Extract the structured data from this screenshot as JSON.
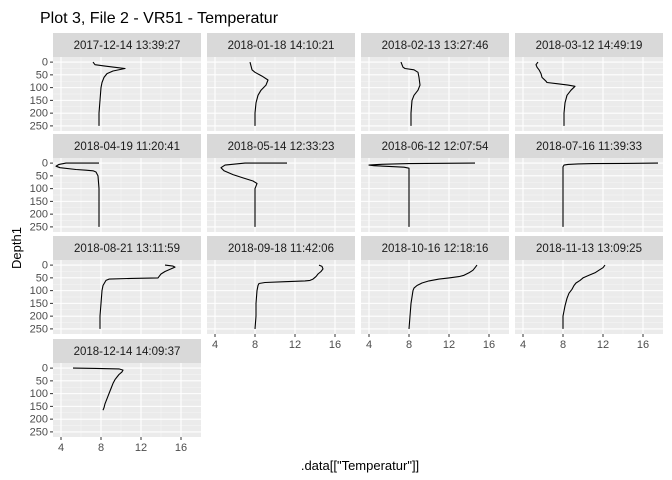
{
  "chart_data": {
    "type": "line",
    "title": "Plot 3, File 2 - VR51  -  Temperatur",
    "xlabel": ".data[[\"Temperatur\"]]",
    "ylabel": "Depth1",
    "xlim": [
      3.2,
      18
    ],
    "ylim": [
      270,
      -20
    ],
    "y_reversed": true,
    "x_ticks": [
      4,
      8,
      12,
      16
    ],
    "y_ticks": [
      0,
      50,
      100,
      150,
      200,
      250
    ],
    "grid": true,
    "legend": "none",
    "line_color": "#000000",
    "panel_background": "#ebebeb",
    "strip_background": "#d9d9d9",
    "panels": [
      {
        "label": "2017-12-14 13:39:27",
        "points": [
          [
            7.2,
            0
          ],
          [
            7.4,
            10
          ],
          [
            8.3,
            15
          ],
          [
            9.3,
            20
          ],
          [
            10.4,
            25
          ],
          [
            9.2,
            35
          ],
          [
            8.6,
            45
          ],
          [
            8.3,
            60
          ],
          [
            8.1,
            80
          ],
          [
            8.0,
            100
          ],
          [
            7.9,
            150
          ],
          [
            7.8,
            200
          ],
          [
            7.8,
            250
          ]
        ]
      },
      {
        "label": "2018-01-18 14:10:21",
        "points": [
          [
            7.5,
            0
          ],
          [
            7.6,
            15
          ],
          [
            7.7,
            30
          ],
          [
            8.0,
            40
          ],
          [
            8.7,
            55
          ],
          [
            9.3,
            70
          ],
          [
            9.1,
            90
          ],
          [
            8.6,
            110
          ],
          [
            8.3,
            130
          ],
          [
            8.1,
            160
          ],
          [
            8.0,
            200
          ],
          [
            8.0,
            250
          ]
        ]
      },
      {
        "label": "2018-02-13 13:27:46",
        "points": [
          [
            7.2,
            0
          ],
          [
            7.3,
            10
          ],
          [
            7.4,
            20
          ],
          [
            7.6,
            25
          ],
          [
            8.5,
            30
          ],
          [
            8.9,
            40
          ],
          [
            9.0,
            60
          ],
          [
            9.1,
            90
          ],
          [
            8.9,
            110
          ],
          [
            8.5,
            130
          ],
          [
            8.3,
            150
          ],
          [
            8.2,
            200
          ],
          [
            8.2,
            250
          ]
        ]
      },
      {
        "label": "2018-03-12 14:49:19",
        "points": [
          [
            5.5,
            0
          ],
          [
            5.3,
            10
          ],
          [
            5.4,
            20
          ],
          [
            5.6,
            30
          ],
          [
            5.8,
            45
          ],
          [
            5.9,
            60
          ],
          [
            6.3,
            75
          ],
          [
            6.4,
            80
          ],
          [
            7.5,
            85
          ],
          [
            8.5,
            90
          ],
          [
            9.2,
            95
          ],
          [
            8.8,
            110
          ],
          [
            8.4,
            130
          ],
          [
            8.2,
            160
          ],
          [
            8.1,
            200
          ],
          [
            8.1,
            250
          ]
        ]
      },
      {
        "label": "2018-04-19 11:20:41",
        "points": [
          [
            7.8,
            0
          ],
          [
            4.5,
            0
          ],
          [
            3.8,
            5
          ],
          [
            3.5,
            12
          ],
          [
            3.9,
            18
          ],
          [
            5.5,
            25
          ],
          [
            6.5,
            28
          ],
          [
            7.2,
            30
          ],
          [
            7.5,
            35
          ],
          [
            7.7,
            50
          ],
          [
            7.8,
            100
          ],
          [
            7.8,
            150
          ],
          [
            7.8,
            200
          ],
          [
            7.8,
            250
          ]
        ]
      },
      {
        "label": "2018-05-14 12:33:23",
        "points": [
          [
            11.2,
            0
          ],
          [
            7.0,
            0
          ],
          [
            5.0,
            8
          ],
          [
            4.6,
            18
          ],
          [
            4.9,
            30
          ],
          [
            5.8,
            45
          ],
          [
            6.8,
            58
          ],
          [
            7.8,
            70
          ],
          [
            8.2,
            80
          ],
          [
            8.1,
            90
          ],
          [
            8.0,
            100
          ],
          [
            8.0,
            150
          ],
          [
            8.0,
            200
          ],
          [
            8.0,
            250
          ]
        ]
      },
      {
        "label": "2018-06-12 12:07:54",
        "points": [
          [
            14.6,
            0
          ],
          [
            8.0,
            2
          ],
          [
            5.0,
            5
          ],
          [
            4.0,
            8
          ],
          [
            4.5,
            10
          ],
          [
            6.0,
            13
          ],
          [
            7.5,
            16
          ],
          [
            8.0,
            20
          ],
          [
            8.0,
            50
          ],
          [
            8.0,
            100
          ],
          [
            8.0,
            150
          ],
          [
            8.0,
            200
          ],
          [
            8.0,
            250
          ]
        ]
      },
      {
        "label": "2018-07-16 11:39:33",
        "points": [
          [
            17.5,
            0
          ],
          [
            14.0,
            1
          ],
          [
            11.0,
            2
          ],
          [
            9.5,
            3
          ],
          [
            8.5,
            5
          ],
          [
            8.1,
            8
          ],
          [
            8.0,
            15
          ],
          [
            8.0,
            30
          ],
          [
            8.0,
            50
          ],
          [
            8.0,
            100
          ],
          [
            8.0,
            150
          ],
          [
            8.0,
            200
          ],
          [
            8.0,
            250
          ]
        ]
      },
      {
        "label": "2018-08-21 13:11:59",
        "points": [
          [
            14.4,
            0
          ],
          [
            14.8,
            2
          ],
          [
            15.2,
            4
          ],
          [
            15.4,
            8
          ],
          [
            15.0,
            15
          ],
          [
            14.4,
            25
          ],
          [
            14.0,
            35
          ],
          [
            13.8,
            45
          ],
          [
            13.7,
            50
          ],
          [
            11.0,
            52
          ],
          [
            8.8,
            55
          ],
          [
            8.5,
            60
          ],
          [
            8.2,
            80
          ],
          [
            8.1,
            100
          ],
          [
            8.0,
            150
          ],
          [
            7.9,
            200
          ],
          [
            7.9,
            250
          ]
        ]
      },
      {
        "label": "2018-09-18 11:42:06",
        "points": [
          [
            14.4,
            0
          ],
          [
            14.7,
            5
          ],
          [
            14.8,
            15
          ],
          [
            14.6,
            25
          ],
          [
            14.3,
            35
          ],
          [
            14.1,
            45
          ],
          [
            13.8,
            55
          ],
          [
            13.5,
            60
          ],
          [
            13.0,
            62
          ],
          [
            11.0,
            65
          ],
          [
            9.0,
            68
          ],
          [
            8.4,
            72
          ],
          [
            8.3,
            80
          ],
          [
            8.2,
            100
          ],
          [
            8.1,
            150
          ],
          [
            8.1,
            200
          ],
          [
            8.0,
            250
          ]
        ]
      },
      {
        "label": "2018-10-16 12:18:16",
        "points": [
          [
            14.8,
            0
          ],
          [
            14.6,
            10
          ],
          [
            14.4,
            20
          ],
          [
            14.0,
            30
          ],
          [
            13.5,
            40
          ],
          [
            13.0,
            45
          ],
          [
            12.0,
            50
          ],
          [
            11.0,
            55
          ],
          [
            10.0,
            62
          ],
          [
            9.3,
            70
          ],
          [
            8.8,
            80
          ],
          [
            8.5,
            90
          ],
          [
            8.4,
            100
          ],
          [
            8.2,
            150
          ],
          [
            8.1,
            200
          ],
          [
            8.0,
            250
          ]
        ]
      },
      {
        "label": "2018-11-13 13:09:25",
        "points": [
          [
            12.2,
            0
          ],
          [
            12.0,
            10
          ],
          [
            11.6,
            20
          ],
          [
            11.2,
            30
          ],
          [
            10.6,
            40
          ],
          [
            10.0,
            50
          ],
          [
            9.7,
            60
          ],
          [
            9.3,
            70
          ],
          [
            9.1,
            80
          ],
          [
            8.9,
            95
          ],
          [
            8.6,
            110
          ],
          [
            8.4,
            130
          ],
          [
            8.2,
            160
          ],
          [
            8.0,
            200
          ],
          [
            8.0,
            250
          ]
        ]
      },
      {
        "label": "2018-12-14 14:09:37",
        "points": [
          [
            5.2,
            0
          ],
          [
            7.5,
            1
          ],
          [
            9.8,
            3
          ],
          [
            10.2,
            8
          ],
          [
            10.1,
            15
          ],
          [
            9.8,
            25
          ],
          [
            9.6,
            35
          ],
          [
            9.4,
            45
          ],
          [
            9.2,
            60
          ],
          [
            9.0,
            80
          ],
          [
            8.8,
            100
          ],
          [
            8.6,
            120
          ],
          [
            8.4,
            140
          ],
          [
            8.3,
            155
          ],
          [
            8.2,
            165
          ]
        ]
      }
    ]
  }
}
